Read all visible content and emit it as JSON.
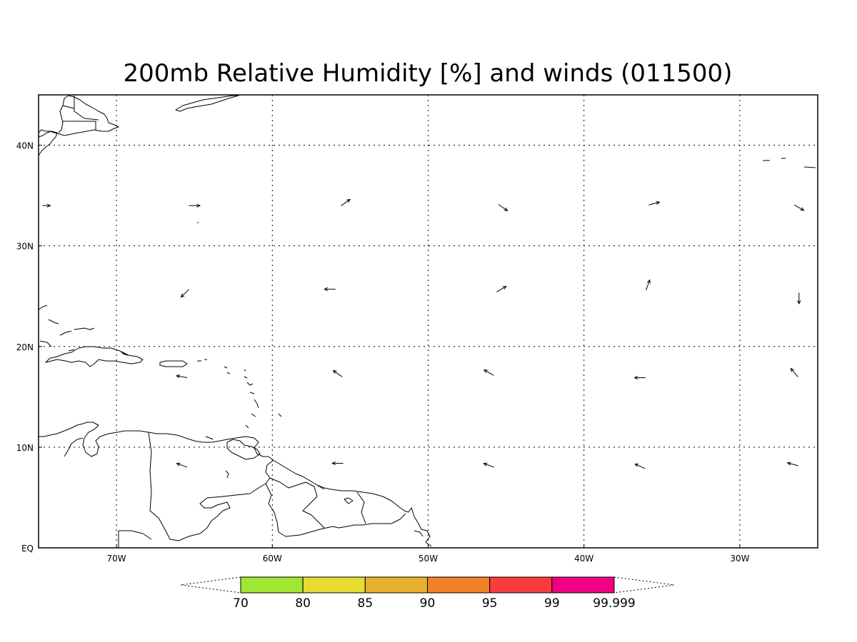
{
  "title": "200mb Relative Humidity [%] and winds (011500)",
  "map": {
    "lon_range": [
      -75,
      -25
    ],
    "lat_range": [
      0,
      45
    ],
    "grid_lons": [
      -70,
      -60,
      -50,
      -40,
      -30
    ],
    "grid_lats": [
      10,
      20,
      30,
      40
    ],
    "x_tick_labels": [
      {
        "lon": -70,
        "label": "70W"
      },
      {
        "lon": -60,
        "label": "60W"
      },
      {
        "lon": -50,
        "label": "50W"
      },
      {
        "lon": -40,
        "label": "40W"
      },
      {
        "lon": -30,
        "label": "30W"
      }
    ],
    "y_tick_labels": [
      {
        "lat": 0,
        "label": "EQ"
      },
      {
        "lat": 10,
        "label": "10N"
      },
      {
        "lat": 20,
        "label": "20N"
      },
      {
        "lat": 30,
        "label": "30N"
      },
      {
        "lat": 40,
        "label": "40N"
      }
    ],
    "grid_style": "dotted",
    "wind_vectors": [
      {
        "lon": -74.5,
        "lat": 34,
        "dir_deg": 0,
        "strength": 0.5
      },
      {
        "lon": -65,
        "lat": 34,
        "dir_deg": 0,
        "strength": 0.7
      },
      {
        "lon": -55.3,
        "lat": 34.3,
        "dir_deg": 35,
        "strength": 0.7
      },
      {
        "lon": -45.2,
        "lat": 33.8,
        "dir_deg": -35,
        "strength": 0.7
      },
      {
        "lon": -35.5,
        "lat": 34.2,
        "dir_deg": 15,
        "strength": 0.7
      },
      {
        "lon": -26.2,
        "lat": 33.8,
        "dir_deg": -30,
        "strength": 0.7
      },
      {
        "lon": -65.6,
        "lat": 25.3,
        "dir_deg": 225,
        "strength": 0.7
      },
      {
        "lon": -56.3,
        "lat": 25.7,
        "dir_deg": 180,
        "strength": 0.7
      },
      {
        "lon": -45.3,
        "lat": 25.7,
        "dir_deg": 30,
        "strength": 0.7
      },
      {
        "lon": -35.9,
        "lat": 26.1,
        "dir_deg": 70,
        "strength": 0.7
      },
      {
        "lon": -26.2,
        "lat": 24.8,
        "dir_deg": 270,
        "strength": 0.7
      },
      {
        "lon": -65.8,
        "lat": 17.0,
        "dir_deg": 170,
        "strength": 0.7
      },
      {
        "lon": -55.8,
        "lat": 17.3,
        "dir_deg": 145,
        "strength": 0.7
      },
      {
        "lon": -46.1,
        "lat": 17.4,
        "dir_deg": 150,
        "strength": 0.7
      },
      {
        "lon": -36.4,
        "lat": 16.9,
        "dir_deg": 180,
        "strength": 0.7
      },
      {
        "lon": -26.5,
        "lat": 17.4,
        "dir_deg": 130,
        "strength": 0.7
      },
      {
        "lon": -65.8,
        "lat": 8.2,
        "dir_deg": 160,
        "strength": 0.7
      },
      {
        "lon": -55.8,
        "lat": 8.4,
        "dir_deg": 180,
        "strength": 0.7
      },
      {
        "lon": -46.1,
        "lat": 8.2,
        "dir_deg": 160,
        "strength": 0.7
      },
      {
        "lon": -36.4,
        "lat": 8.1,
        "dir_deg": 155,
        "strength": 0.7
      },
      {
        "lon": -26.6,
        "lat": 8.3,
        "dir_deg": 165,
        "strength": 0.7
      }
    ]
  },
  "colorbar": {
    "labels": [
      "70",
      "80",
      "85",
      "90",
      "95",
      "99",
      "99.999"
    ],
    "colors": [
      "#a0e632",
      "#e6dc32",
      "#e6af2d",
      "#f08228",
      "#fa3c3c",
      "#f00082"
    ],
    "extend": "both"
  }
}
